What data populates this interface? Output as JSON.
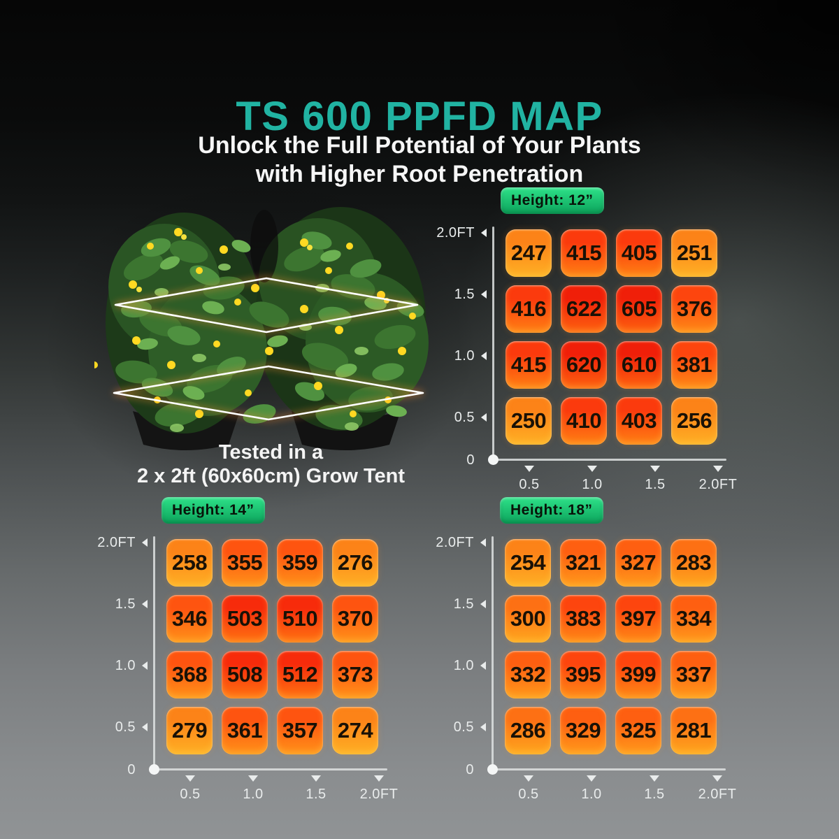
{
  "page": {
    "title": "TS 600 PPFD MAP",
    "subtitle_line1": "Unlock the Full Potential of Your Plants",
    "subtitle_line2": "with Higher Root Penetration"
  },
  "plants": {
    "caption_line1": "Tested in a",
    "caption_line2": "2 x 2ft (60x60cm) Grow Tent"
  },
  "colors": {
    "title_teal": "#21b3a2",
    "badge_top": "#2ee289",
    "badge_bottom": "#0ca25b",
    "axis_label": "#e9ecec",
    "cell_text": "#191106",
    "heat_scale": [
      {
        "min": 600,
        "top": "#f01f09",
        "bottom": "#fe6410"
      },
      {
        "min": 500,
        "top": "#f72b0b",
        "bottom": "#ff7412"
      },
      {
        "min": 400,
        "top": "#fb3a0d",
        "bottom": "#ff8114"
      },
      {
        "min": 375,
        "top": "#fd450e",
        "bottom": "#ff8b17"
      },
      {
        "min": 340,
        "top": "#fe5410",
        "bottom": "#ff931a"
      },
      {
        "min": 310,
        "top": "#fe5f11",
        "bottom": "#ff9b1c"
      },
      {
        "min": 280,
        "top": "#fd7014",
        "bottom": "#ffa81f"
      },
      {
        "min": 0,
        "top": "#fc8318",
        "bottom": "#ffb125"
      }
    ]
  },
  "chart_data": [
    {
      "type": "heatmap",
      "title": "Height: 12”",
      "x": [
        "0.5",
        "1.0",
        "1.5",
        "2.0FT"
      ],
      "y": [
        "2.0FT",
        "1.5",
        "1.0",
        "0.5",
        "0"
      ],
      "x_range_ft": [
        0,
        2
      ],
      "y_range_ft": [
        0,
        2
      ],
      "rows": [
        [
          247,
          415,
          405,
          251
        ],
        [
          416,
          622,
          605,
          376
        ],
        [
          415,
          620,
          610,
          381
        ],
        [
          250,
          410,
          403,
          256
        ]
      ]
    },
    {
      "type": "heatmap",
      "title": "Height: 14”",
      "x": [
        "0.5",
        "1.0",
        "1.5",
        "2.0FT"
      ],
      "y": [
        "2.0FT",
        "1.5",
        "1.0",
        "0.5",
        "0"
      ],
      "x_range_ft": [
        0,
        2
      ],
      "y_range_ft": [
        0,
        2
      ],
      "rows": [
        [
          258,
          355,
          359,
          276
        ],
        [
          346,
          503,
          510,
          370
        ],
        [
          368,
          508,
          512,
          373
        ],
        [
          279,
          361,
          357,
          274
        ]
      ]
    },
    {
      "type": "heatmap",
      "title": "Height: 18”",
      "x": [
        "0.5",
        "1.0",
        "1.5",
        "2.0FT"
      ],
      "y": [
        "2.0FT",
        "1.5",
        "1.0",
        "0.5",
        "0"
      ],
      "x_range_ft": [
        0,
        2
      ],
      "y_range_ft": [
        0,
        2
      ],
      "rows": [
        [
          254,
          321,
          327,
          283
        ],
        [
          300,
          383,
          397,
          334
        ],
        [
          332,
          395,
          399,
          337
        ],
        [
          286,
          329,
          325,
          281
        ]
      ]
    }
  ]
}
